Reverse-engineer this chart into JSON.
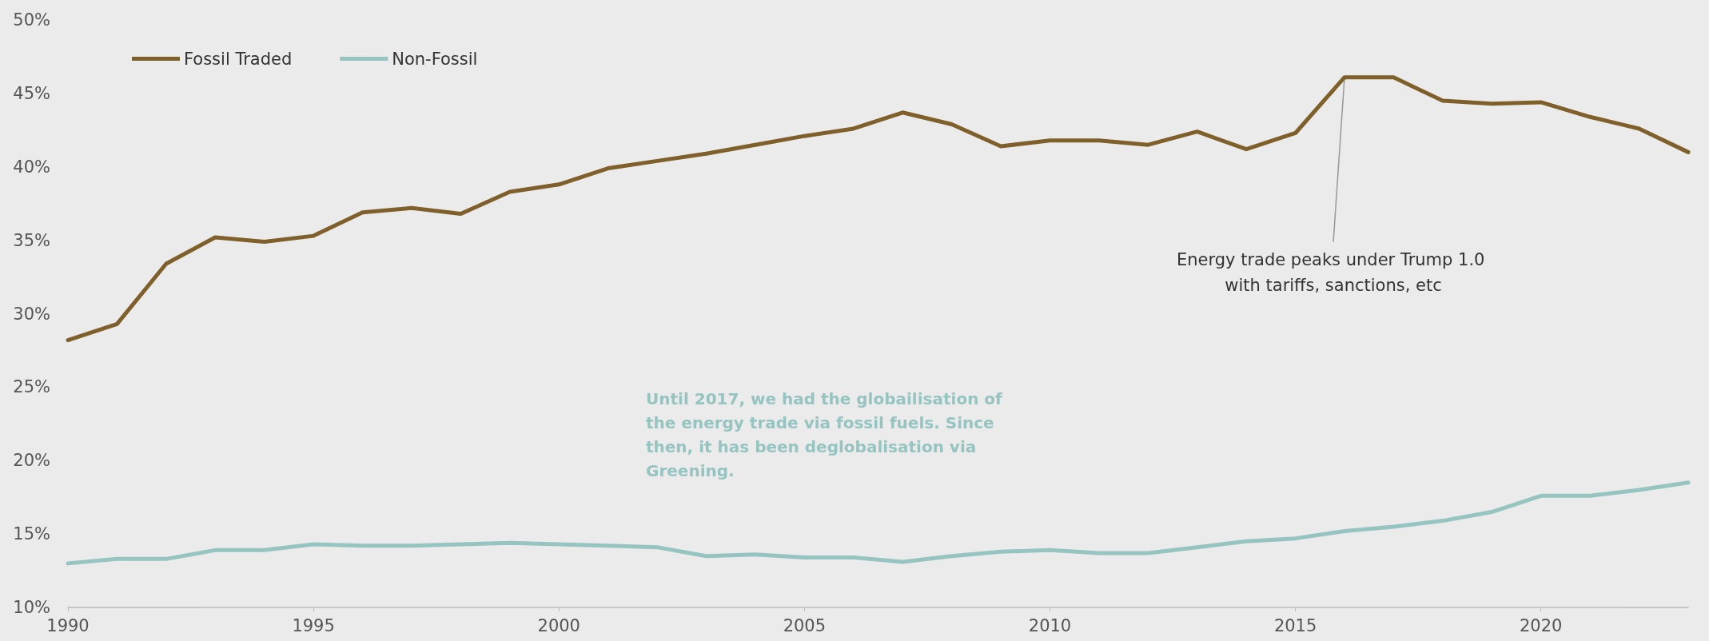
{
  "chart_data": {
    "type": "line",
    "x": [
      1990,
      1991,
      1992,
      1993,
      1994,
      1995,
      1996,
      1997,
      1998,
      1999,
      2000,
      2001,
      2002,
      2003,
      2004,
      2005,
      2006,
      2007,
      2008,
      2009,
      2010,
      2011,
      2012,
      2013,
      2014,
      2015,
      2016,
      2017,
      2018,
      2019,
      2020,
      2021,
      2022,
      2023
    ],
    "series": [
      {
        "name": "Fossil Traded",
        "color": "#7f5f2a",
        "values": [
          28.2,
          29.3,
          33.4,
          35.2,
          34.9,
          35.3,
          36.9,
          37.2,
          36.8,
          38.3,
          38.8,
          39.9,
          40.4,
          40.9,
          41.5,
          42.1,
          42.6,
          43.7,
          42.9,
          41.4,
          41.8,
          41.8,
          41.5,
          42.4,
          41.2,
          42.3,
          46.1,
          46.1,
          44.5,
          44.3,
          44.4,
          43.4,
          42.6,
          41.0
        ]
      },
      {
        "name": "Non-Fossil",
        "color": "#95c4c1",
        "values": [
          13.0,
          13.3,
          13.3,
          13.9,
          13.9,
          14.3,
          14.2,
          14.2,
          14.3,
          14.4,
          14.3,
          14.2,
          14.1,
          13.5,
          13.6,
          13.4,
          13.4,
          13.1,
          13.5,
          13.8,
          13.9,
          13.7,
          13.7,
          14.1,
          14.5,
          14.7,
          15.2,
          15.5,
          15.9,
          16.5,
          17.6,
          17.6,
          18.0,
          18.5
        ]
      }
    ],
    "xlim": [
      1990,
      2023
    ],
    "xticks": [
      1990,
      1995,
      2000,
      2005,
      2010,
      2015,
      2020
    ],
    "ylim": [
      10,
      50
    ],
    "yticks": [
      {
        "value": 10,
        "label": "10%"
      },
      {
        "value": 15,
        "label": "15%"
      },
      {
        "value": 20,
        "label": "20%"
      },
      {
        "value": 25,
        "label": "25%"
      },
      {
        "value": 30,
        "label": "30%"
      },
      {
        "value": 35,
        "label": "35%"
      },
      {
        "value": 40,
        "label": "40%"
      },
      {
        "value": 45,
        "label": "45%"
      },
      {
        "value": 50,
        "label": "50%"
      }
    ],
    "annotations": [
      {
        "text": "Energy trade peaks under Trump 1.0 with tariffs, sanctions, etc",
        "x": 2016,
        "y": 46.1
      },
      "Until 2017, we had the globailisation of the energy trade via fossil fuels. Since then, it has been deglobalisation via Greening."
    ],
    "legend": "top left",
    "grid": false,
    "marker": "none",
    "line_style": "solid"
  }
}
